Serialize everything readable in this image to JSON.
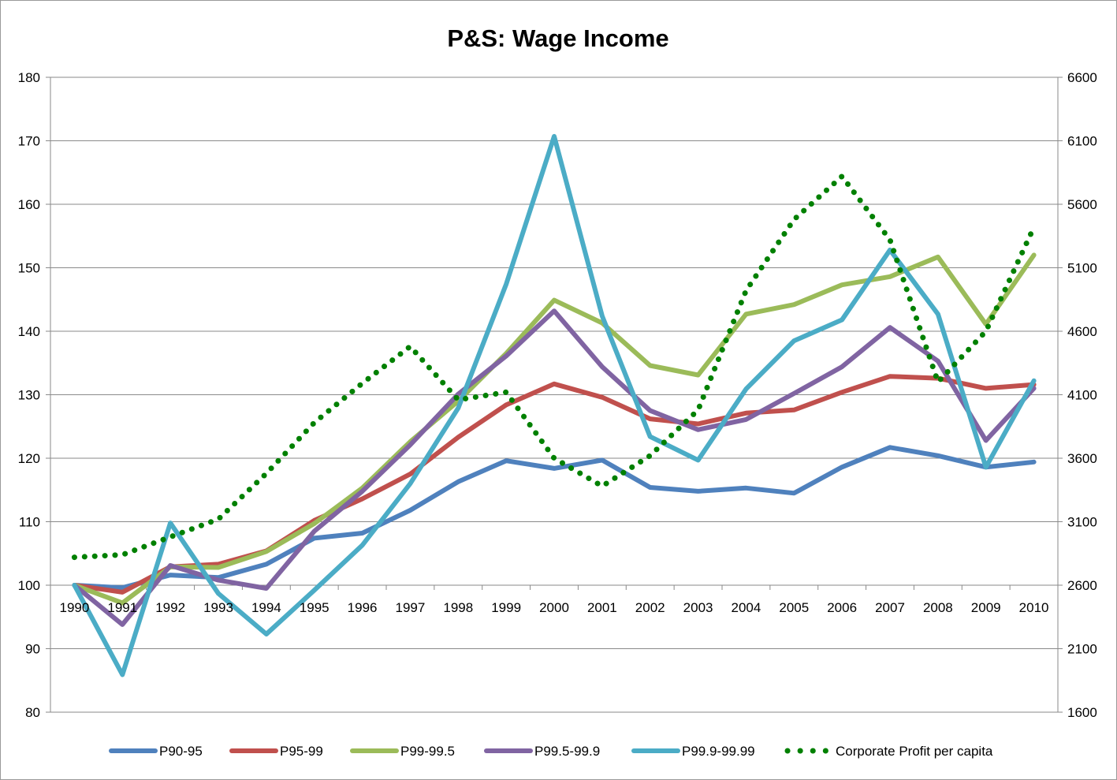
{
  "chart_data": {
    "type": "line",
    "title": "P&S: Wage Income",
    "xlabel": "",
    "ylabel": "",
    "categories": [
      "1990",
      "1991",
      "1992",
      "1993",
      "1994",
      "1995",
      "1996",
      "1997",
      "1998",
      "1999",
      "2000",
      "2001",
      "2002",
      "2003",
      "2004",
      "2005",
      "2006",
      "2007",
      "2008",
      "2009",
      "2010"
    ],
    "y_left": {
      "min": 80,
      "max": 180,
      "ticks": [
        80,
        90,
        100,
        110,
        120,
        130,
        140,
        150,
        160,
        170,
        180
      ]
    },
    "y_right": {
      "min": 1600,
      "max": 6600,
      "ticks": [
        1600,
        2100,
        2600,
        3100,
        3600,
        4100,
        4600,
        5100,
        5600,
        6100,
        6600
      ]
    },
    "grid": true,
    "legend_position": "bottom",
    "series": [
      {
        "name": "P90-95",
        "axis": "left",
        "style": "solid",
        "color": "#4f81bd",
        "values": [
          100,
          99.6,
          101.6,
          101.2,
          103.3,
          107.4,
          108.2,
          111.8,
          116.3,
          119.6,
          118.4,
          119.7,
          115.4,
          114.8,
          115.3,
          114.5,
          118.6,
          121.7,
          120.4,
          118.6,
          119.4
        ]
      },
      {
        "name": "P95-99",
        "axis": "left",
        "style": "solid",
        "color": "#c0504d",
        "values": [
          100,
          98.9,
          102.9,
          103.3,
          105.4,
          110.2,
          113.6,
          117.5,
          123.3,
          128.4,
          131.7,
          129.6,
          126.2,
          125.4,
          127.1,
          127.6,
          130.4,
          132.9,
          132.6,
          131.0,
          131.6
        ]
      },
      {
        "name": "P99-99.5",
        "axis": "left",
        "style": "solid",
        "color": "#9bbb59",
        "values": [
          100,
          97.2,
          102.9,
          102.8,
          105.3,
          109.7,
          115.3,
          122.6,
          129.0,
          136.5,
          144.9,
          141.3,
          134.6,
          133.1,
          142.7,
          144.2,
          147.3,
          148.6,
          151.7,
          141.1,
          152.0
        ]
      },
      {
        "name": "P99.5-99.9",
        "axis": "left",
        "style": "solid",
        "color": "#8064a2",
        "values": [
          100,
          93.8,
          103.1,
          100.8,
          99.5,
          108.5,
          114.8,
          122.1,
          130.1,
          136.1,
          143.2,
          134.4,
          127.5,
          124.5,
          126.1,
          130.2,
          134.4,
          140.6,
          135.3,
          122.8,
          131.0
        ]
      },
      {
        "name": "P99.9-99.99",
        "axis": "left",
        "style": "solid",
        "color": "#4bacc6",
        "values": [
          100,
          85.9,
          109.8,
          98.7,
          92.3,
          99.2,
          106.3,
          116.0,
          127.9,
          147.4,
          170.7,
          142.4,
          123.4,
          119.7,
          130.9,
          138.5,
          141.8,
          152.8,
          142.7,
          118.6,
          132.2
        ]
      },
      {
        "name": "Corporate Profit per capita",
        "axis": "right",
        "style": "dotted",
        "color": "#008000",
        "values": [
          2820,
          2840,
          2980,
          3120,
          3480,
          3880,
          4190,
          4480,
          4060,
          4120,
          3600,
          3380,
          3620,
          3980,
          4920,
          5480,
          5820,
          5320,
          4200,
          4600,
          5420
        ]
      }
    ]
  }
}
